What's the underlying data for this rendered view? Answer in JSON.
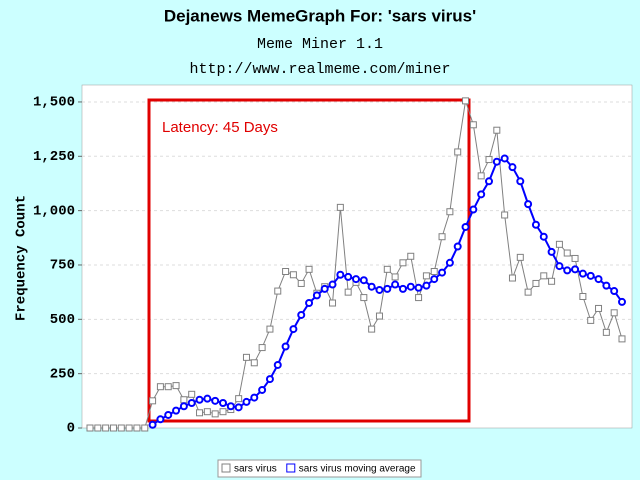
{
  "chart_data": {
    "type": "line",
    "title": "Dejanews MemeGraph For: 'sars virus'",
    "subtitle": "Meme Miner 1.1",
    "source": "http://www.realmeme.com/miner",
    "y_label": "Frequency Count",
    "annotation": "Latency: 45 Days",
    "categories": [
      null,
      null,
      null,
      null,
      null,
      null,
      null,
      null,
      null,
      null,
      null,
      null,
      null,
      null,
      null,
      null,
      null,
      null,
      null,
      null,
      null,
      null,
      null,
      null,
      null,
      null,
      null,
      null,
      null,
      null,
      null,
      null,
      null,
      null,
      null,
      null,
      null,
      null,
      null,
      null,
      null,
      null,
      null,
      null,
      null,
      null,
      null,
      null,
      null,
      null,
      null,
      null,
      null,
      null,
      null,
      null,
      null,
      null,
      null,
      null,
      null,
      null,
      null,
      null,
      null,
      null,
      null,
      null,
      null
    ],
    "series": [
      {
        "name": "sars virus",
        "color": "#808080",
        "marker": "square",
        "values": [
          0,
          0,
          0,
          0,
          0,
          0,
          0,
          0,
          125,
          190,
          190,
          195,
          130,
          155,
          70,
          75,
          65,
          75,
          85,
          135,
          325,
          300,
          370,
          455,
          630,
          720,
          705,
          665,
          730,
          620,
          650,
          575,
          1015,
          625,
          670,
          600,
          455,
          515,
          730,
          695,
          760,
          790,
          600,
          700,
          720,
          880,
          995,
          1270,
          1505,
          1395,
          1160,
          1235,
          1370,
          980,
          690,
          785,
          625,
          665,
          700,
          675,
          845,
          805,
          780,
          605,
          495,
          550,
          440,
          530,
          410
        ]
      },
      {
        "name": "sars virus moving average",
        "color": "#0000ff",
        "marker": "circle",
        "values": [
          null,
          null,
          null,
          null,
          null,
          null,
          null,
          null,
          15,
          40,
          60,
          80,
          100,
          115,
          130,
          135,
          125,
          115,
          100,
          95,
          120,
          140,
          175,
          225,
          290,
          375,
          455,
          520,
          575,
          610,
          640,
          660,
          705,
          695,
          685,
          680,
          650,
          635,
          640,
          660,
          640,
          650,
          645,
          655,
          685,
          715,
          760,
          835,
          925,
          1005,
          1075,
          1135,
          1225,
          1240,
          1200,
          1135,
          1030,
          935,
          880,
          810,
          745,
          725,
          730,
          710,
          700,
          685,
          655,
          630,
          580
        ]
      }
    ],
    "ylim": [
      0,
      1578
    ],
    "yticks": [
      0,
      250,
      500,
      750,
      {
        "value": 1000,
        "label": "1,000"
      },
      {
        "value": 1250,
        "label": "1,250"
      },
      {
        "value": 1500,
        "label": "1,500"
      }
    ],
    "grid": true,
    "legend": "bottom"
  }
}
